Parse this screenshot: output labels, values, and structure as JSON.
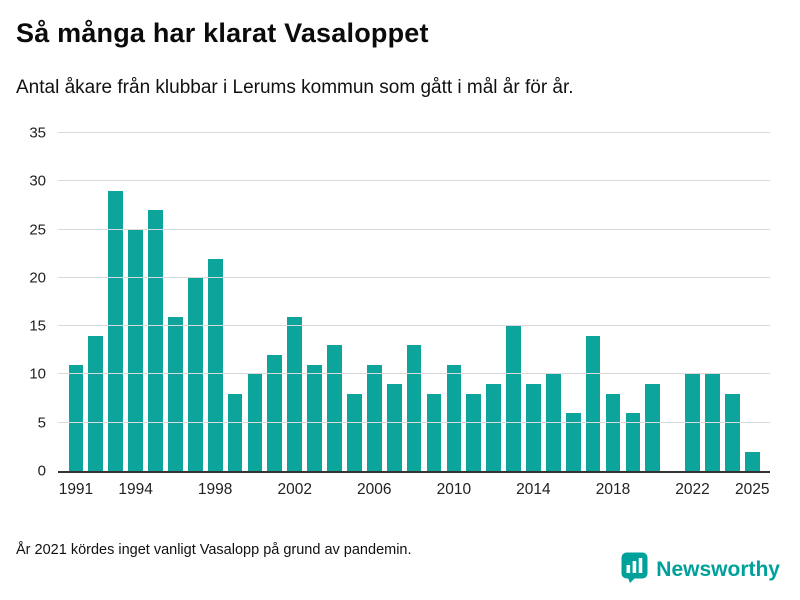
{
  "header": {
    "title": "Så många har klarat Vasaloppet",
    "subtitle": "Antal åkare från klubbar i Lerums kommun som gått i mål år för år."
  },
  "footnote": "År 2021 kördes inget vanligt Vasalopp på grund av pandemin.",
  "brand": {
    "name": "Newsworthy",
    "color": "#00a09b"
  },
  "chart_data": {
    "type": "bar",
    "title": "Så många har klarat Vasaloppet",
    "xlabel": "",
    "ylabel": "",
    "x": [
      1991,
      1992,
      1993,
      1994,
      1995,
      1996,
      1997,
      1998,
      1999,
      2000,
      2001,
      2002,
      2003,
      2004,
      2005,
      2006,
      2007,
      2008,
      2009,
      2010,
      2011,
      2012,
      2013,
      2014,
      2015,
      2016,
      2017,
      2018,
      2019,
      2020,
      2021,
      2022,
      2023,
      2024,
      2025
    ],
    "values": [
      11,
      14,
      29,
      25,
      27,
      16,
      20,
      22,
      8,
      10,
      12,
      16,
      11,
      13,
      8,
      11,
      9,
      13,
      8,
      11,
      8,
      9,
      15,
      9,
      10,
      6,
      14,
      8,
      6,
      9,
      null,
      10,
      10,
      8,
      2
    ],
    "ylim": [
      0,
      35
    ],
    "yticks": [
      0,
      5,
      10,
      15,
      20,
      25,
      30,
      35
    ],
    "xticks": [
      1991,
      1994,
      1998,
      2002,
      2006,
      2010,
      2014,
      2018,
      2022,
      2025
    ],
    "bar_color": "#0da49b",
    "grid": true,
    "legend": "none",
    "note": "no bar for 2021 (pandemic)"
  }
}
